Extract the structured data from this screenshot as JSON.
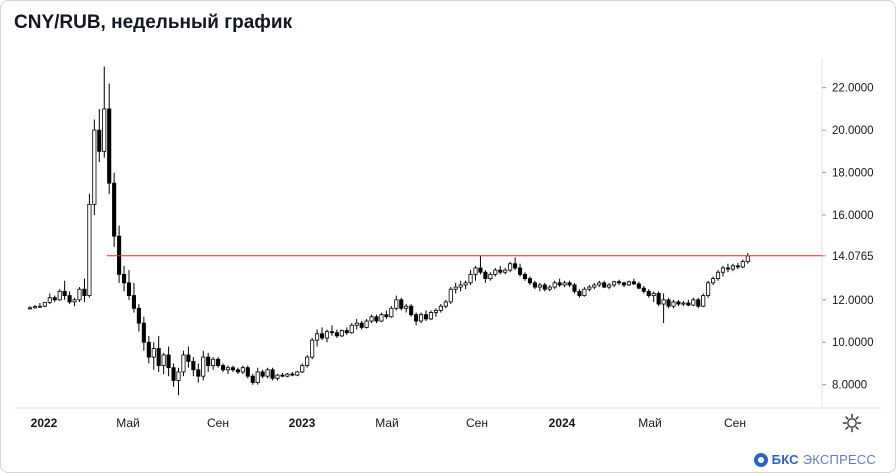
{
  "header": {
    "title": "CNY/RUB, недельный график"
  },
  "branding": {
    "logo_text": "БКС",
    "logo_sub": "ЭКСПРЕСС",
    "accent_color": "#2b63c6"
  },
  "icons": {
    "settings": "gear-icon"
  },
  "chart_data": {
    "type": "candlestick",
    "title": "CNY/RUB, недельный график",
    "y_axis": {
      "position": "right",
      "min": 6.9,
      "max": 23.4,
      "ticks": [
        "8.0000",
        "10.0000",
        "12.0000",
        "14.0765",
        "16.0000",
        "18.0000",
        "20.0000",
        "22.0000"
      ]
    },
    "x_axis": {
      "labels": [
        "2022",
        "Май",
        "Сен",
        "2023",
        "Май",
        "Сен",
        "2024",
        "Май",
        "Сен"
      ]
    },
    "grid": false,
    "reference_line": {
      "value": 14.0765,
      "color": "#d32f2f",
      "label": "14.0765"
    },
    "candle_colors": {
      "up": "#ffffff",
      "down": "#000000",
      "outline": "#000000"
    },
    "ohlc": [
      [
        11.6,
        11.7,
        11.55,
        11.62
      ],
      [
        11.62,
        11.75,
        11.58,
        11.68
      ],
      [
        11.68,
        11.85,
        11.62,
        11.7
      ],
      [
        11.7,
        11.9,
        11.65,
        11.88
      ],
      [
        11.88,
        12.3,
        11.8,
        12.1
      ],
      [
        12.1,
        12.2,
        11.9,
        12.0
      ],
      [
        12.0,
        12.5,
        11.95,
        12.4
      ],
      [
        12.4,
        12.9,
        12.0,
        12.2
      ],
      [
        12.2,
        12.4,
        11.8,
        11.9
      ],
      [
        11.9,
        12.1,
        11.7,
        12.0
      ],
      [
        12.0,
        12.6,
        11.9,
        12.5
      ],
      [
        12.5,
        13.0,
        11.9,
        12.2
      ],
      [
        12.2,
        17.0,
        12.1,
        16.5
      ],
      [
        16.5,
        20.5,
        16.0,
        20.0
      ],
      [
        20.0,
        21.0,
        18.5,
        19.0
      ],
      [
        19.0,
        23.0,
        18.7,
        21.0
      ],
      [
        21.0,
        22.2,
        17.0,
        17.5
      ],
      [
        17.5,
        18.0,
        14.5,
        15.0
      ],
      [
        15.0,
        15.5,
        12.8,
        13.2
      ],
      [
        13.2,
        13.6,
        12.4,
        12.8
      ],
      [
        12.8,
        13.4,
        12.0,
        12.2
      ],
      [
        12.2,
        12.8,
        11.4,
        11.6
      ],
      [
        11.6,
        11.8,
        10.5,
        10.9
      ],
      [
        10.9,
        11.2,
        9.6,
        10.0
      ],
      [
        10.0,
        10.3,
        9.0,
        9.3
      ],
      [
        9.3,
        10.0,
        8.7,
        9.7
      ],
      [
        9.7,
        10.3,
        8.6,
        8.9
      ],
      [
        8.9,
        9.5,
        8.5,
        9.4
      ],
      [
        9.4,
        9.8,
        8.4,
        8.8
      ],
      [
        8.8,
        9.0,
        7.9,
        8.2
      ],
      [
        8.2,
        8.8,
        7.5,
        8.6
      ],
      [
        8.6,
        9.6,
        8.4,
        9.4
      ],
      [
        9.4,
        9.8,
        8.8,
        9.1
      ],
      [
        9.1,
        9.3,
        8.4,
        8.7
      ],
      [
        8.7,
        9.0,
        8.1,
        8.4
      ],
      [
        8.4,
        9.6,
        8.2,
        9.3
      ],
      [
        9.3,
        9.5,
        8.6,
        8.9
      ],
      [
        8.9,
        9.3,
        8.7,
        9.2
      ],
      [
        9.2,
        9.3,
        8.8,
        8.9
      ],
      [
        8.9,
        9.0,
        8.6,
        8.7
      ],
      [
        8.7,
        8.9,
        8.5,
        8.8
      ],
      [
        8.8,
        8.9,
        8.6,
        8.7
      ],
      [
        8.7,
        8.8,
        8.5,
        8.6
      ],
      [
        8.6,
        8.9,
        8.5,
        8.8
      ],
      [
        8.8,
        8.9,
        8.3,
        8.4
      ],
      [
        8.4,
        8.5,
        8.0,
        8.1
      ],
      [
        8.1,
        8.8,
        8.0,
        8.6
      ],
      [
        8.6,
        8.7,
        8.3,
        8.4
      ],
      [
        8.4,
        8.8,
        8.3,
        8.7
      ],
      [
        8.7,
        8.8,
        8.2,
        8.3
      ],
      [
        8.3,
        8.5,
        8.2,
        8.45
      ],
      [
        8.45,
        8.55,
        8.35,
        8.4
      ],
      [
        8.4,
        8.55,
        8.35,
        8.5
      ],
      [
        8.5,
        8.6,
        8.4,
        8.45
      ],
      [
        8.45,
        8.65,
        8.4,
        8.6
      ],
      [
        8.6,
        9.0,
        8.55,
        8.9
      ],
      [
        8.9,
        9.4,
        8.8,
        9.3
      ],
      [
        9.3,
        10.2,
        9.2,
        10.1
      ],
      [
        10.1,
        10.6,
        9.8,
        10.4
      ],
      [
        10.4,
        10.7,
        10.1,
        10.2
      ],
      [
        10.2,
        10.6,
        10.0,
        10.5
      ],
      [
        10.5,
        10.8,
        10.3,
        10.45
      ],
      [
        10.45,
        10.6,
        10.2,
        10.3
      ],
      [
        10.3,
        10.6,
        10.25,
        10.55
      ],
      [
        10.55,
        10.7,
        10.35,
        10.45
      ],
      [
        10.45,
        10.9,
        10.4,
        10.8
      ],
      [
        10.8,
        11.1,
        10.6,
        10.9
      ],
      [
        10.9,
        11.0,
        10.6,
        10.7
      ],
      [
        10.7,
        11.1,
        10.65,
        11.0
      ],
      [
        11.0,
        11.3,
        10.9,
        11.2
      ],
      [
        11.2,
        11.3,
        10.9,
        11.0
      ],
      [
        11.0,
        11.4,
        10.95,
        11.3
      ],
      [
        11.3,
        11.5,
        11.1,
        11.2
      ],
      [
        11.2,
        11.7,
        11.15,
        11.6
      ],
      [
        11.6,
        12.2,
        11.5,
        12.0
      ],
      [
        12.0,
        12.1,
        11.5,
        11.6
      ],
      [
        11.6,
        11.8,
        11.4,
        11.7
      ],
      [
        11.7,
        11.8,
        11.2,
        11.3
      ],
      [
        11.3,
        11.4,
        10.8,
        11.0
      ],
      [
        11.0,
        11.4,
        10.9,
        11.3
      ],
      [
        11.3,
        11.5,
        11.0,
        11.1
      ],
      [
        11.1,
        11.5,
        11.05,
        11.4
      ],
      [
        11.4,
        11.6,
        11.2,
        11.5
      ],
      [
        11.5,
        11.8,
        11.4,
        11.7
      ],
      [
        11.7,
        12.0,
        11.6,
        11.9
      ],
      [
        11.9,
        12.6,
        11.8,
        12.5
      ],
      [
        12.5,
        12.8,
        12.3,
        12.6
      ],
      [
        12.6,
        12.9,
        12.4,
        12.7
      ],
      [
        12.7,
        12.9,
        12.5,
        12.8
      ],
      [
        12.8,
        13.4,
        12.7,
        13.2
      ],
      [
        13.2,
        13.6,
        12.9,
        13.5
      ],
      [
        13.5,
        14.1,
        13.2,
        13.3
      ],
      [
        13.3,
        13.4,
        12.8,
        13.0
      ],
      [
        13.0,
        13.3,
        12.9,
        13.2
      ],
      [
        13.2,
        13.5,
        13.1,
        13.4
      ],
      [
        13.4,
        13.6,
        13.2,
        13.3
      ],
      [
        13.3,
        13.5,
        13.2,
        13.4
      ],
      [
        13.4,
        13.8,
        13.3,
        13.7
      ],
      [
        13.7,
        14.0,
        13.4,
        13.5
      ],
      [
        13.5,
        13.7,
        13.1,
        13.2
      ],
      [
        13.2,
        13.3,
        12.9,
        13.0
      ],
      [
        13.0,
        13.1,
        12.7,
        12.8
      ],
      [
        12.8,
        12.9,
        12.5,
        12.6
      ],
      [
        12.6,
        12.8,
        12.4,
        12.7
      ],
      [
        12.7,
        12.8,
        12.4,
        12.5
      ],
      [
        12.5,
        12.7,
        12.4,
        12.6
      ],
      [
        12.6,
        12.9,
        12.5,
        12.8
      ],
      [
        12.8,
        13.0,
        12.6,
        12.7
      ],
      [
        12.7,
        12.9,
        12.6,
        12.8
      ],
      [
        12.8,
        12.9,
        12.6,
        12.7
      ],
      [
        12.7,
        12.8,
        12.3,
        12.4
      ],
      [
        12.4,
        12.5,
        12.1,
        12.2
      ],
      [
        12.2,
        12.6,
        12.15,
        12.5
      ],
      [
        12.5,
        12.7,
        12.4,
        12.6
      ],
      [
        12.6,
        12.8,
        12.5,
        12.7
      ],
      [
        12.7,
        12.9,
        12.6,
        12.8
      ],
      [
        12.8,
        12.9,
        12.55,
        12.6
      ],
      [
        12.6,
        12.8,
        12.5,
        12.7
      ],
      [
        12.7,
        12.9,
        12.6,
        12.85
      ],
      [
        12.85,
        12.95,
        12.7,
        12.8
      ],
      [
        12.8,
        12.85,
        12.6,
        12.7
      ],
      [
        12.7,
        12.9,
        12.65,
        12.85
      ],
      [
        12.85,
        13.0,
        12.7,
        12.75
      ],
      [
        12.75,
        12.85,
        12.5,
        12.55
      ],
      [
        12.55,
        12.65,
        12.3,
        12.4
      ],
      [
        12.4,
        12.5,
        12.1,
        12.2
      ],
      [
        12.2,
        12.4,
        11.9,
        12.3
      ],
      [
        12.3,
        12.4,
        11.7,
        11.8
      ],
      [
        11.8,
        12.3,
        10.9,
        12.0
      ],
      [
        12.0,
        12.1,
        11.6,
        11.7
      ],
      [
        11.7,
        12.0,
        11.6,
        11.9
      ],
      [
        11.9,
        12.0,
        11.7,
        11.8
      ],
      [
        11.8,
        11.95,
        11.7,
        11.85
      ],
      [
        11.85,
        12.0,
        11.7,
        11.75
      ],
      [
        11.75,
        12.1,
        11.7,
        12.0
      ],
      [
        12.0,
        12.1,
        11.6,
        11.7
      ],
      [
        11.7,
        12.3,
        11.65,
        12.2
      ],
      [
        12.2,
        12.9,
        12.1,
        12.8
      ],
      [
        12.8,
        13.1,
        12.7,
        13.0
      ],
      [
        13.0,
        13.4,
        12.9,
        13.3
      ],
      [
        13.3,
        13.6,
        13.1,
        13.5
      ],
      [
        13.5,
        13.7,
        13.3,
        13.45
      ],
      [
        13.45,
        13.7,
        13.35,
        13.6
      ],
      [
        13.6,
        13.75,
        13.45,
        13.55
      ],
      [
        13.55,
        13.9,
        13.5,
        13.8
      ],
      [
        13.8,
        14.2,
        13.7,
        14.07
      ]
    ]
  }
}
